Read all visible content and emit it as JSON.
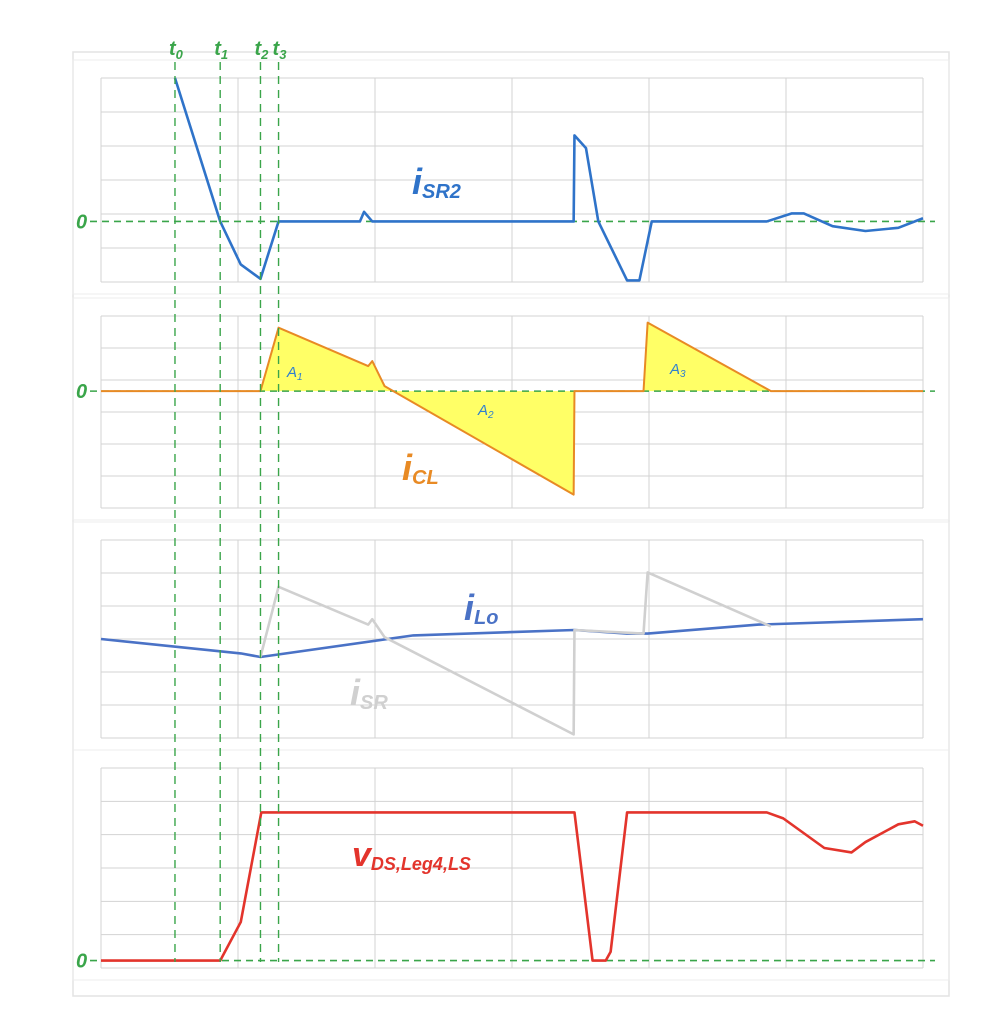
{
  "chart_data": {
    "type": "line",
    "title": "",
    "x_range": [
      0,
      100
    ],
    "time_markers": [
      {
        "name": "t",
        "sub": "0",
        "x": 9
      },
      {
        "name": "t",
        "sub": "1",
        "x": 14.5
      },
      {
        "name": "t",
        "sub": "2",
        "x": 19.4
      },
      {
        "name": "t",
        "sub": "3",
        "x": 21.6
      }
    ],
    "zero_label": "0",
    "panels": [
      {
        "id": "isr2",
        "ylim": [
          -3.8,
          9
        ],
        "zero_line": true,
        "series": [
          {
            "name_main": "i",
            "name_sub": "SR2",
            "color": "#2f73c9",
            "points": [
              [
                9,
                9
              ],
              [
                14.5,
                0
              ],
              [
                17,
                -2.7
              ],
              [
                19.4,
                -3.6
              ],
              [
                21.6,
                0
              ],
              [
                31.5,
                0
              ],
              [
                32,
                0.6
              ],
              [
                33,
                0
              ],
              [
                57.5,
                0
              ],
              [
                57.6,
                5.4
              ],
              [
                59,
                4.6
              ],
              [
                60.5,
                0
              ],
              [
                64,
                -3.7
              ],
              [
                65.5,
                -3.7
              ],
              [
                67,
                0
              ],
              [
                81,
                0
              ],
              [
                84,
                0.5
              ],
              [
                85.5,
                0.5
              ],
              [
                89,
                -0.3
              ],
              [
                93,
                -0.6
              ],
              [
                97,
                -0.4
              ],
              [
                100,
                0.2
              ]
            ]
          }
        ]
      },
      {
        "id": "icl",
        "ylim": [
          -7,
          4.5
        ],
        "zero_line": true,
        "series": [
          {
            "name_main": "i",
            "name_sub": "CL",
            "color": "#e88a24",
            "fill": "#ffff66",
            "points": [
              [
                0,
                0
              ],
              [
                19.4,
                0
              ],
              [
                21.6,
                3.8
              ],
              [
                32.5,
                1.5
              ],
              [
                33,
                1.8
              ],
              [
                34.5,
                0.3
              ],
              [
                57.5,
                -6.2
              ],
              [
                57.6,
                0
              ],
              [
                66,
                0
              ],
              [
                66.5,
                4.1
              ],
              [
                81.5,
                0
              ],
              [
                100,
                0
              ]
            ]
          }
        ],
        "areas": [
          {
            "main": "A",
            "sub": "1"
          },
          {
            "main": "A",
            "sub": "2"
          },
          {
            "main": "A",
            "sub": "3"
          }
        ]
      },
      {
        "id": "ilo",
        "ylim": [
          -5.5,
          5.5
        ],
        "zero_line": false,
        "series": [
          {
            "name_main": "i",
            "name_sub": "Lo",
            "color": "#4a72c6",
            "points": [
              [
                0,
                0
              ],
              [
                17,
                -0.8
              ],
              [
                19.4,
                -1.0
              ],
              [
                38,
                0.2
              ],
              [
                57.6,
                0.5
              ],
              [
                64,
                0.3
              ],
              [
                66.5,
                0.3
              ],
              [
                80,
                0.8
              ],
              [
                100,
                1.1
              ]
            ]
          },
          {
            "name_main": "i",
            "name_sub": "SR",
            "color": "#d0d0d0",
            "points": [
              [
                19.4,
                -1.0
              ],
              [
                21.6,
                2.9
              ],
              [
                32.5,
                0.8
              ],
              [
                33,
                1.1
              ],
              [
                34.5,
                0.1
              ],
              [
                57.5,
                -5.3
              ],
              [
                57.6,
                0.5
              ],
              [
                66,
                0.3
              ],
              [
                66.5,
                3.7
              ],
              [
                81.5,
                0.7
              ]
            ]
          }
        ]
      },
      {
        "id": "vds",
        "ylim": [
          -0.5,
          13
        ],
        "zero_line": true,
        "series": [
          {
            "name_main": "v",
            "name_sub": "DS,Leg4,LS",
            "color": "#e3342c",
            "points": [
              [
                0,
                0
              ],
              [
                14.5,
                0
              ],
              [
                17,
                2.6
              ],
              [
                19.5,
                10
              ],
              [
                57.6,
                10
              ],
              [
                59.8,
                0
              ],
              [
                61.4,
                0
              ],
              [
                62,
                0.6
              ],
              [
                64,
                10
              ],
              [
                81,
                10
              ],
              [
                83,
                9.6
              ],
              [
                88,
                7.6
              ],
              [
                91.3,
                7.3
              ],
              [
                93,
                8
              ],
              [
                97,
                9.2
              ],
              [
                99,
                9.4
              ],
              [
                100,
                9.1
              ]
            ]
          }
        ]
      }
    ]
  }
}
